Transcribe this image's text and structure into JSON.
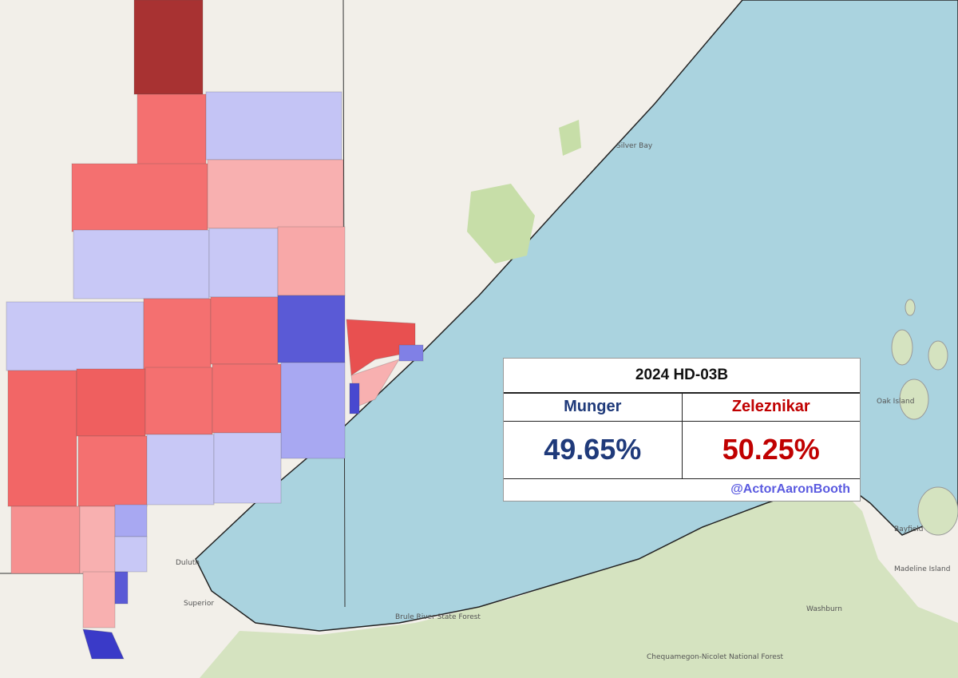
{
  "table": {
    "title": "2024 HD-03B",
    "candidates": [
      {
        "name": "Munger",
        "share": "49.65%"
      },
      {
        "name": "Zeleznikar",
        "share": "50.25%"
      }
    ],
    "credit": "@ActorAaronBooth"
  },
  "places": [
    "Duluth",
    "Superior",
    "Silver Bay",
    "Bayfield",
    "Washburn",
    "Brule River State Forest",
    "Chequamegon-Nicolet National Forest",
    "Madeline Island",
    "Oak Island"
  ]
}
